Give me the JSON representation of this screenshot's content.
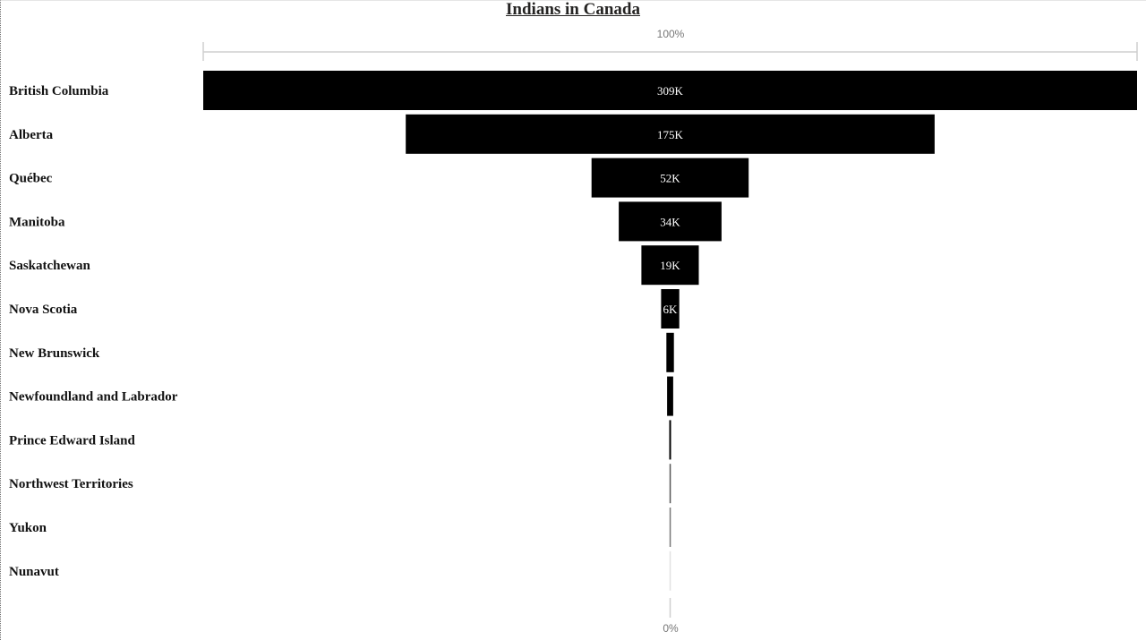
{
  "chart_data": {
    "type": "funnel",
    "title": "Indians in Canada",
    "top_percent_label": "100%",
    "bottom_percent_label": "0%",
    "categories": [
      "British Columbia",
      "Alberta",
      "Québec",
      "Manitoba",
      "Saskatchewan",
      "Nova Scotia",
      "New Brunswick",
      "Newfoundland and Labrador",
      "Prince Edward Island",
      "Northwest Territories",
      "Yukon",
      "Nunavut"
    ],
    "values": [
      309000,
      175000,
      52000,
      34000,
      19000,
      6000,
      2500,
      2000,
      600,
      250,
      200,
      50
    ],
    "data_labels": [
      "309K",
      "175K",
      "52K",
      "34K",
      "19K",
      "6K",
      "",
      "",
      "",
      "",
      "",
      ""
    ],
    "colors": [
      "#000000",
      "#000000",
      "#000000",
      "#000000",
      "#000000",
      "#000000",
      "#000000",
      "#000000",
      "#000000",
      "#555555",
      "#777777",
      "#e2e2e2"
    ]
  }
}
